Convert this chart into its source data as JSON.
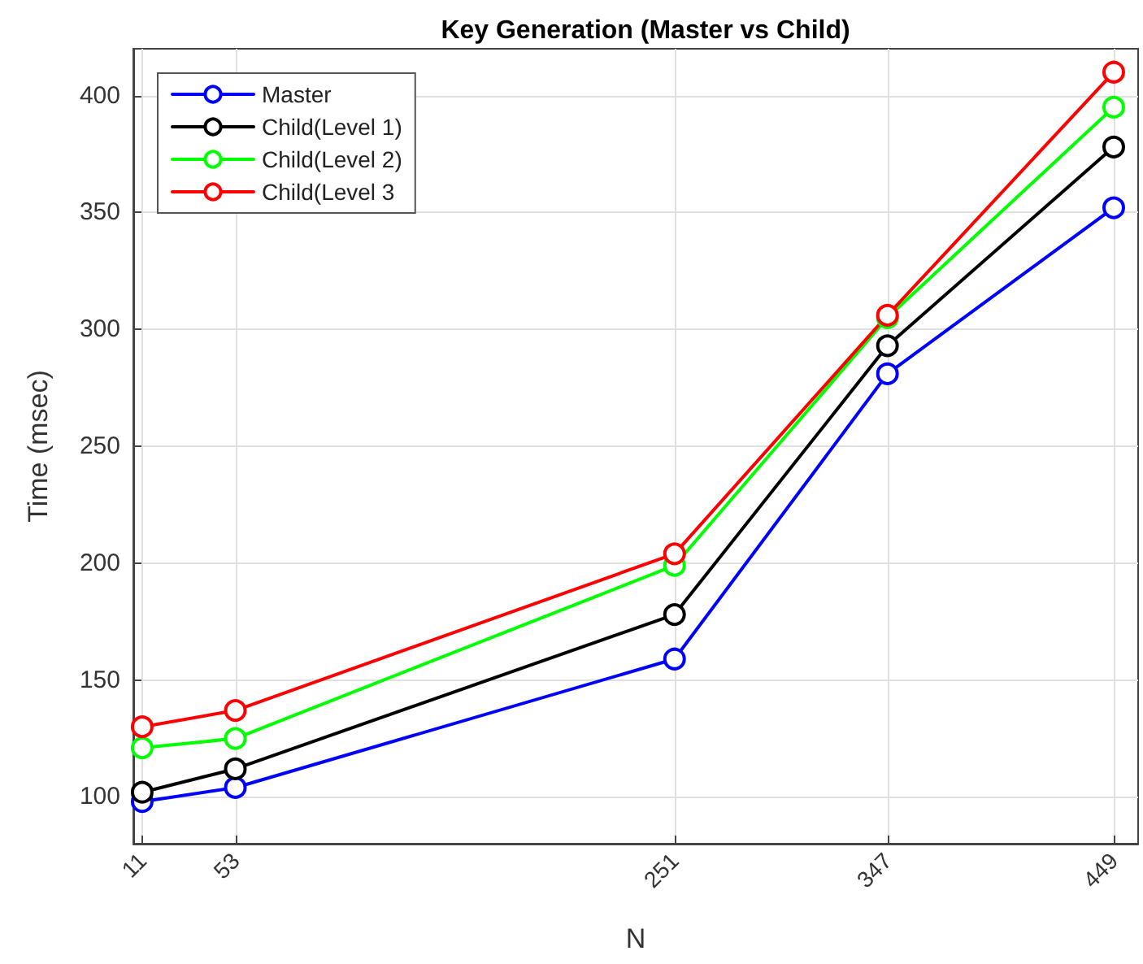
{
  "chart_data": {
    "type": "line",
    "title": "Key Generation (Master vs Child)",
    "xlabel": "N",
    "ylabel": "Time (msec)",
    "x": [
      11,
      53,
      251,
      347,
      449
    ],
    "series": [
      {
        "name": "Master",
        "color": "#0000ff",
        "values": [
          98,
          104,
          159,
          281,
          352
        ]
      },
      {
        "name": "Child(Level 1)",
        "color": "#000000",
        "values": [
          102,
          112,
          178,
          293,
          378
        ]
      },
      {
        "name": "Child(Level 2)",
        "color": "#00ff00",
        "values": [
          121,
          125,
          199,
          305,
          395
        ]
      },
      {
        "name": "Child(Level 3",
        "color": "#ff0000",
        "values": [
          130,
          137,
          204,
          306,
          410
        ]
      }
    ],
    "xlim": [
      7,
      460
    ],
    "xticks": [
      11,
      53,
      251,
      347,
      449
    ],
    "ylim": [
      80,
      420
    ],
    "yticks": [
      100,
      150,
      200,
      250,
      300,
      350,
      400
    ],
    "grid": true,
    "legend": "top left",
    "marker": "circle",
    "line_style": "solid"
  }
}
